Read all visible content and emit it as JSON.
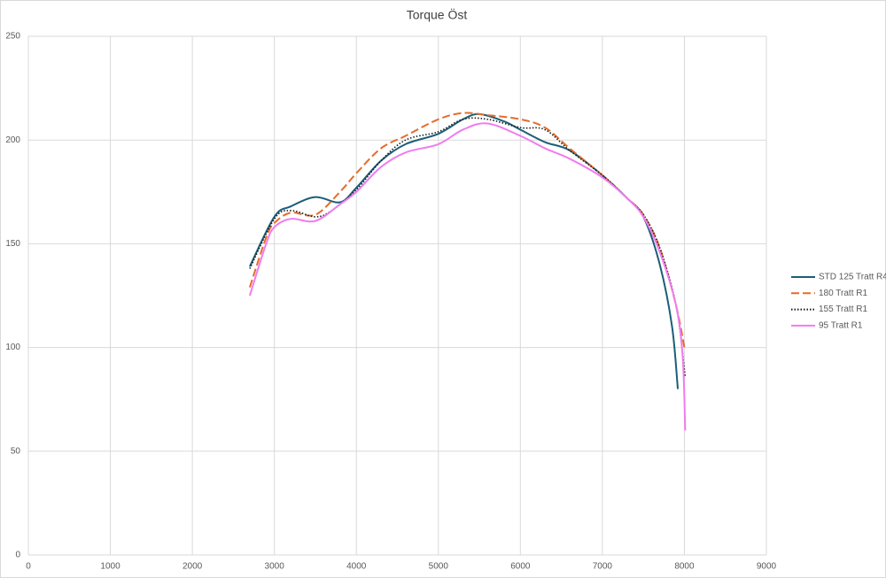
{
  "chart_data": {
    "type": "line",
    "title": "Torque Öst",
    "xlim": [
      0,
      9000
    ],
    "xticks": [
      0,
      1000,
      2000,
      3000,
      4000,
      5000,
      6000,
      7000,
      8000,
      9000
    ],
    "ylim": [
      0,
      250
    ],
    "yticks": [
      0,
      50,
      100,
      150,
      200,
      250
    ],
    "grid": true,
    "legend": "right",
    "series": [
      {
        "name": "STD 125 Tratt R4",
        "color": "#1b5e78",
        "style": "solid",
        "x": [
          2700,
          3000,
          3200,
          3500,
          3800,
          4000,
          4300,
          4600,
          5000,
          5300,
          5500,
          5800,
          6000,
          6300,
          6600,
          7000,
          7300,
          7500,
          7700,
          7850,
          7920
        ],
        "values": [
          139,
          163,
          168,
          172.5,
          170,
          177,
          190,
          198,
          203,
          210,
          212.5,
          209,
          205,
          199,
          195,
          183,
          172,
          163,
          140,
          110,
          80
        ]
      },
      {
        "name": "180 Tratt R1",
        "color": "#e46c2a",
        "style": "dashed",
        "x": [
          2700,
          2900,
          3000,
          3200,
          3500,
          3800,
          4000,
          4300,
          4600,
          5000,
          5300,
          5600,
          6000,
          6300,
          6600,
          7000,
          7300,
          7500,
          7700,
          7900,
          8000
        ],
        "values": [
          129,
          153,
          160,
          165,
          164,
          175,
          184,
          196,
          202,
          210,
          213,
          212,
          210,
          206,
          196,
          183,
          172,
          164,
          148,
          120,
          100
        ]
      },
      {
        "name": "155 Tratt R1",
        "color": "#1a1a1a",
        "style": "dotted",
        "x": [
          2700,
          3000,
          3200,
          3500,
          3700,
          4000,
          4300,
          4600,
          5000,
          5300,
          5600,
          6000,
          6300,
          6600,
          7000,
          7300,
          7500,
          7700,
          7900,
          8010
        ],
        "values": [
          138,
          162,
          166,
          163,
          166,
          176,
          190,
          200,
          204,
          210,
          210,
          206,
          205,
          195,
          183,
          172,
          164,
          148,
          120,
          86
        ]
      },
      {
        "name": "95 Tratt R1",
        "color": "#f07cf0",
        "style": "solid",
        "x": [
          2700,
          2900,
          3000,
          3200,
          3500,
          3800,
          4000,
          4300,
          4600,
          5000,
          5300,
          5600,
          6000,
          6300,
          6600,
          7000,
          7300,
          7500,
          7700,
          7900,
          7980,
          8010
        ],
        "values": [
          125,
          150,
          158,
          162,
          161,
          169,
          175,
          187,
          194,
          198,
          205,
          208,
          202,
          196,
          191,
          182,
          172,
          163,
          146,
          120,
          95,
          60
        ]
      }
    ]
  }
}
